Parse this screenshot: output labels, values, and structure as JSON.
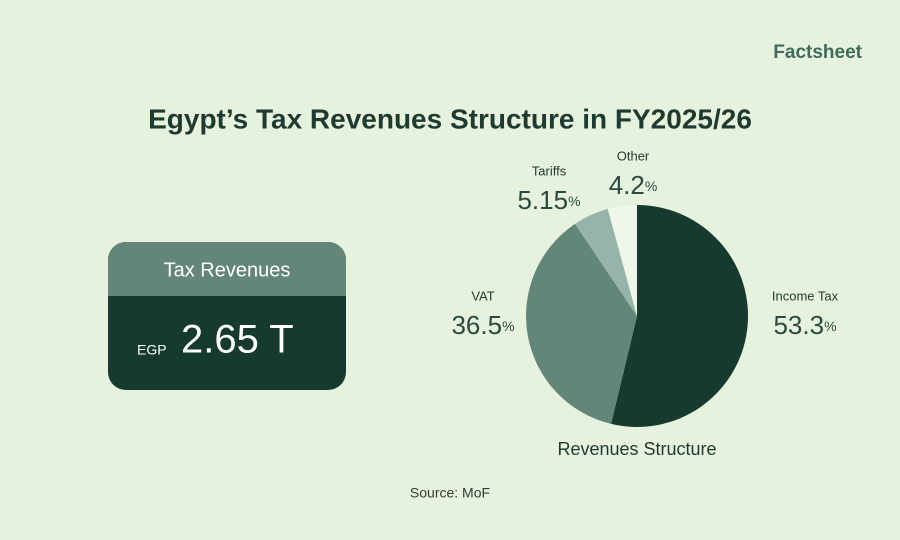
{
  "brand": "Factsheet",
  "title": "Egypt’s Tax Revenues Structure in FY2025/26",
  "card": {
    "title": "Tax Revenues",
    "currency": "EGP",
    "amount": "2.65 T"
  },
  "chart_data": {
    "type": "pie",
    "caption": "Revenues Structure",
    "categories": [
      "Income Tax",
      "VAT",
      "Tariffs",
      "Other"
    ],
    "values": [
      53.3,
      36.5,
      5.15,
      4.2
    ],
    "unit": "%",
    "colors": [
      "#173a30",
      "#638679",
      "#96b4a9",
      "#eef7ea"
    ]
  },
  "source": "Source: MoF"
}
